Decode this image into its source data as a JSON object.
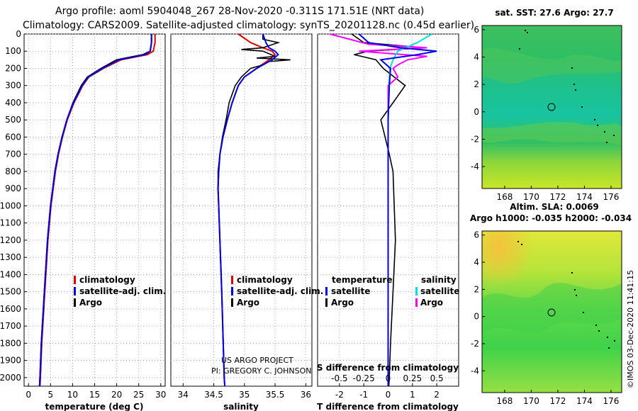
{
  "header": {
    "line1": "Argo profile: aoml 5904048_267 28-Nov-2020 -0.311S 171.51E (NRT data)",
    "line2": "Climatology: CARS2009. Satellite-adjusted climatology: synTS_20201128.nc (0.45d earlier)"
  },
  "colors": {
    "climatology": "#e00000",
    "satellite": "#0000e0",
    "argo": "#000000",
    "salinity_diff": "#ff00ff",
    "satellite_salinity": "#00e0e0"
  },
  "credits": {
    "project": "US ARGO PROJECT",
    "pi": "PI: GREGORY C. JOHNSON",
    "watermark": "©IMOS 03-Dec-2020 11:41:15"
  },
  "chart_data": [
    {
      "id": "temperature",
      "type": "line",
      "xlabel": "temperature (deg C)",
      "ylabel": "",
      "xlim": [
        -1,
        31
      ],
      "ylim": [
        2050,
        0
      ],
      "xticks": [
        0,
        5,
        10,
        15,
        20,
        25,
        30
      ],
      "yticks": [
        0,
        100,
        200,
        300,
        400,
        500,
        600,
        700,
        800,
        900,
        1000,
        1100,
        1200,
        1300,
        1400,
        1500,
        1600,
        1700,
        1800,
        1900,
        2000
      ],
      "legend": [
        "climatology",
        "satellite-adj. clim.",
        "Argo"
      ],
      "series": [
        {
          "name": "climatology",
          "depth": [
            0,
            50,
            100,
            120,
            150,
            200,
            250,
            300,
            400,
            500,
            600,
            700,
            800,
            1000,
            1200,
            1500,
            1800,
            2000,
            2050
          ],
          "values": [
            28.7,
            28.7,
            28.3,
            27,
            21,
            17,
            13.7,
            12.3,
            10.3,
            8.8,
            7.7,
            6.8,
            6.1,
            5.1,
            4.4,
            3.7,
            3.0,
            2.7,
            2.6
          ]
        },
        {
          "name": "satellite-adj. clim.",
          "depth": [
            0,
            50,
            100,
            120,
            150,
            200,
            250,
            300,
            400,
            500,
            600,
            700,
            800,
            1000,
            1200,
            1500,
            1800,
            2000,
            2050
          ],
          "values": [
            27.9,
            27.9,
            27.6,
            26.5,
            20.5,
            16.8,
            13.6,
            12.2,
            10.2,
            8.7,
            7.6,
            6.7,
            6.0,
            5.0,
            4.3,
            3.6,
            2.9,
            2.6,
            2.5
          ]
        },
        {
          "name": "Argo",
          "depth": [
            0,
            50,
            100,
            120,
            150,
            200,
            250,
            300,
            400,
            500,
            600,
            700,
            800,
            1000,
            1200,
            1500,
            1800,
            2000,
            2050
          ],
          "values": [
            27.9,
            27.9,
            27.6,
            26,
            20,
            16.5,
            13.4,
            12.0,
            10.1,
            8.7,
            7.6,
            6.7,
            6.0,
            5.0,
            4.3,
            3.6,
            2.9,
            2.6,
            2.5
          ]
        }
      ]
    },
    {
      "id": "salinity",
      "type": "line",
      "xlabel": "salinity",
      "xlim": [
        33.8,
        36.1
      ],
      "ylim": [
        2050,
        0
      ],
      "xticks": [
        34,
        34.5,
        35,
        35.5,
        36
      ],
      "legend": [
        "climatology",
        "satellite-adj. clim.",
        "Argo"
      ],
      "series": [
        {
          "name": "climatology",
          "depth": [
            0,
            50,
            80,
            100,
            120,
            150,
            200,
            250,
            300,
            400,
            500,
            600,
            700,
            800,
            900,
            1000,
            1200,
            1500,
            2000,
            2050
          ],
          "values": [
            34.9,
            35.1,
            35.3,
            35.45,
            35.5,
            35.4,
            35.2,
            35.0,
            34.9,
            34.8,
            34.72,
            34.65,
            34.6,
            34.58,
            34.57,
            34.58,
            34.6,
            34.63,
            34.67,
            34.68
          ]
        },
        {
          "name": "satellite-adj. clim.",
          "depth": [
            0,
            50,
            80,
            100,
            120,
            150,
            200,
            250,
            300,
            400,
            500,
            600,
            700,
            800,
            900,
            1000,
            1200,
            1500,
            2000,
            2050
          ],
          "values": [
            35.3,
            35.35,
            35.4,
            35.5,
            35.55,
            35.45,
            35.2,
            35.0,
            34.9,
            34.8,
            34.72,
            34.65,
            34.6,
            34.58,
            34.57,
            34.58,
            34.6,
            34.63,
            34.67,
            34.68
          ]
        },
        {
          "name": "Argo",
          "depth": [
            0,
            30,
            50,
            80,
            90,
            100,
            130,
            140,
            150,
            160,
            180,
            200,
            250,
            300,
            400,
            500,
            600,
            700,
            800,
            900,
            1000,
            1200,
            1500,
            2000,
            2050
          ],
          "values": [
            35.3,
            35.3,
            35.55,
            35.3,
            34.95,
            35.3,
            35.5,
            35.2,
            35.75,
            35.4,
            35.3,
            35.1,
            34.95,
            34.85,
            34.75,
            34.7,
            34.64,
            34.6,
            34.57,
            34.57,
            34.58,
            34.6,
            34.63,
            34.67,
            34.68
          ]
        }
      ]
    },
    {
      "id": "difference",
      "type": "line",
      "xlabel": "T difference from climatology",
      "xlabel2": "S difference from climatology",
      "xlim": [
        -2.9,
        2.9
      ],
      "ylim": [
        2050,
        0
      ],
      "xticks": [
        -2,
        -1,
        0,
        1,
        2
      ],
      "xticks_labels": [
        "-2",
        "-1",
        "0",
        "1",
        "2"
      ],
      "xticks2": [
        -0.5,
        -0.25,
        0,
        0.25,
        0.5
      ],
      "legend_title_left": "temperature",
      "legend_title_right": "salinity",
      "legend": [
        "satellite",
        "Argo",
        "satellite",
        "Argo"
      ],
      "series": [
        {
          "name": "T satellite",
          "depth": [
            0,
            50,
            80,
            100,
            120,
            150,
            200,
            300,
            500,
            800,
            1000,
            1500,
            2000,
            2050
          ],
          "values": [
            -1.2,
            -0.8,
            0.5,
            2.0,
            1.2,
            -0.3,
            0.1,
            0.05,
            0,
            0,
            0,
            0,
            0,
            0
          ]
        },
        {
          "name": "T Argo",
          "depth": [
            0,
            50,
            80,
            100,
            120,
            150,
            200,
            300,
            400,
            500,
            700,
            800,
            1000,
            1200,
            1500,
            1800,
            2000,
            2050
          ],
          "values": [
            -1.5,
            -1.0,
            1.5,
            -0.8,
            -1.4,
            -0.5,
            -0.2,
            0.7,
            0.2,
            -0.3,
            0.05,
            0.2,
            0.25,
            0.3,
            0.2,
            0.1,
            0.05,
            0.03
          ]
        },
        {
          "name": "S satellite",
          "depth": [
            0,
            50,
            100,
            150,
            200,
            300,
            500,
            1000,
            2050
          ],
          "values": [
            0.45,
            0.3,
            0.1,
            0.05,
            0.02,
            0.01,
            0,
            0,
            0
          ]
        },
        {
          "name": "S Argo",
          "depth": [
            0,
            60,
            80,
            100,
            130,
            150,
            180,
            200,
            250,
            300,
            500,
            1000,
            2050
          ],
          "values": [
            -0.6,
            -0.2,
            0.4,
            -0.3,
            0.4,
            0.2,
            0.1,
            0.05,
            0.1,
            0.0,
            0,
            0,
            0
          ]
        }
      ]
    },
    {
      "id": "sst_map",
      "type": "heatmap",
      "title": "sat. SST: 27.6 Argo: 27.7",
      "xticks": [
        168,
        170,
        172,
        174,
        176
      ],
      "yticks": [
        6,
        4,
        2,
        0,
        -2,
        -4
      ],
      "xlim": [
        166.3,
        176.8
      ],
      "ylim": [
        -5.6,
        6.3
      ],
      "marker": [
        171.51,
        -0.311
      ]
    },
    {
      "id": "sla_map",
      "type": "heatmap",
      "title": "Altim. SLA: 0.0069",
      "subtitle": "Argo h1000: -0.035 h2000: -0.034",
      "xticks": [
        168,
        170,
        172,
        174,
        176
      ],
      "yticks": [
        6,
        4,
        2,
        0,
        -2,
        -4
      ],
      "xlim": [
        166.3,
        176.8
      ],
      "ylim": [
        -5.6,
        6.3
      ],
      "marker": [
        171.51,
        -0.311
      ]
    }
  ]
}
